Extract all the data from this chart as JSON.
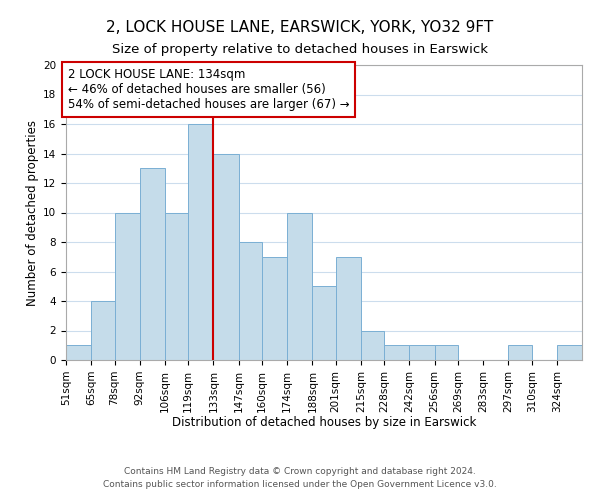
{
  "title": "2, LOCK HOUSE LANE, EARSWICK, YORK, YO32 9FT",
  "subtitle": "Size of property relative to detached houses in Earswick",
  "xlabel": "Distribution of detached houses by size in Earswick",
  "ylabel": "Number of detached properties",
  "bin_labels": [
    "51sqm",
    "65sqm",
    "78sqm",
    "92sqm",
    "106sqm",
    "119sqm",
    "133sqm",
    "147sqm",
    "160sqm",
    "174sqm",
    "188sqm",
    "201sqm",
    "215sqm",
    "228sqm",
    "242sqm",
    "256sqm",
    "269sqm",
    "283sqm",
    "297sqm",
    "310sqm",
    "324sqm"
  ],
  "bin_edges": [
    51,
    65,
    78,
    92,
    106,
    119,
    133,
    147,
    160,
    174,
    188,
    201,
    215,
    228,
    242,
    256,
    269,
    283,
    297,
    310,
    324,
    338
  ],
  "counts": [
    1,
    4,
    10,
    13,
    10,
    16,
    14,
    8,
    7,
    10,
    5,
    7,
    2,
    1,
    1,
    1,
    0,
    0,
    1,
    0,
    1
  ],
  "bar_color": "#c5dcea",
  "bar_edge_color": "#7aafd4",
  "vline_x": 133,
  "vline_color": "#cc0000",
  "annotation_line1": "2 LOCK HOUSE LANE: 134sqm",
  "annotation_line2": "← 46% of detached houses are smaller (56)",
  "annotation_line3": "54% of semi-detached houses are larger (67) →",
  "annotation_box_color": "#ffffff",
  "annotation_box_edge": "#cc0000",
  "ylim": [
    0,
    20
  ],
  "yticks": [
    0,
    2,
    4,
    6,
    8,
    10,
    12,
    14,
    16,
    18,
    20
  ],
  "footer_line1": "Contains HM Land Registry data © Crown copyright and database right 2024.",
  "footer_line2": "Contains public sector information licensed under the Open Government Licence v3.0.",
  "background_color": "#ffffff",
  "grid_color": "#ccdded",
  "title_fontsize": 11,
  "subtitle_fontsize": 9.5,
  "axis_label_fontsize": 8.5,
  "tick_fontsize": 7.5,
  "annotation_fontsize": 8.5,
  "footer_fontsize": 6.5
}
